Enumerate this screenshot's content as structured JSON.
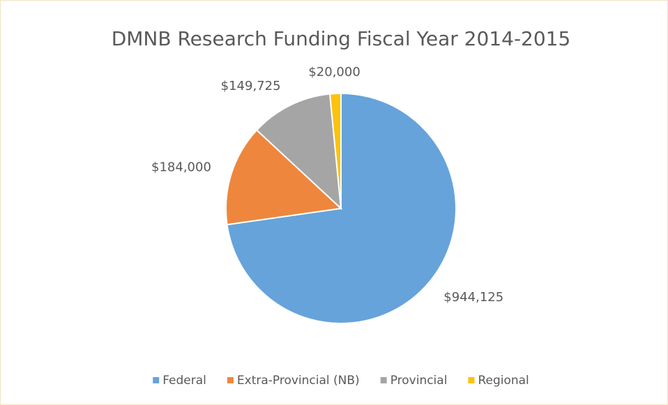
{
  "chart_data": {
    "type": "pie",
    "title": "DMNB Research Funding Fiscal Year 2014-2015",
    "categories": [
      "Federal",
      "Extra-Provincial (NB)",
      "Provincial",
      "Regional"
    ],
    "values": [
      944125,
      184000,
      149725,
      20000
    ],
    "value_labels": [
      "$944,125",
      "$184,000",
      "$149,725",
      "$20,000"
    ],
    "colors": [
      "#66a3db",
      "#ee873d",
      "#a5a5a5",
      "#fcc20c"
    ],
    "legend": "bottom"
  }
}
